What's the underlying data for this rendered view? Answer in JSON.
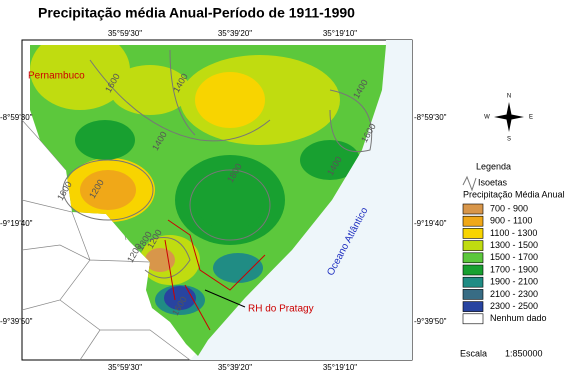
{
  "title": "Precipitação média Anual-Período de 1911-1990",
  "map": {
    "top_coords": [
      "35°59'30\"",
      "35°39'20\"",
      "35°19'10\""
    ],
    "bottom_coords": [
      "35°59'30\"",
      "35°39'20\"",
      "35°19'10\""
    ],
    "left_coords": [
      "-8°59'30\"",
      "-9°19'40\"",
      "-9°39'50\""
    ],
    "right_coords": [
      "-8°59'30\"",
      "-9°19'40\"",
      "-9°39'50\""
    ],
    "state": "Pernambuco",
    "ocean": "Oceano Atlântico",
    "basin": "RH do Pratagy",
    "isoline_labels": [
      "1600",
      "1400",
      "1200",
      "1400",
      "1600",
      "1800",
      "1400",
      "1600",
      "1200",
      "1800",
      "1200",
      "1600",
      "1400"
    ]
  },
  "compass": {
    "n": "N",
    "s": "S",
    "e": "E",
    "w": "W"
  },
  "legend": {
    "title": "Legenda",
    "isolines": "Isoetas",
    "precip_title": "Precipitação Média Anual",
    "items": [
      {
        "label": "700 - 900",
        "color": "#d8964a"
      },
      {
        "label": "900 - 1100",
        "color": "#f0a818"
      },
      {
        "label": "1100 - 1300",
        "color": "#f8d400"
      },
      {
        "label": "1300 - 1500",
        "color": "#c0dc10"
      },
      {
        "label": "1500 - 1700",
        "color": "#5cc83c"
      },
      {
        "label": "1700 - 1900",
        "color": "#18a030"
      },
      {
        "label": "1900 - 2100",
        "color": "#208c84"
      },
      {
        "label": "2100 - 2300",
        "color": "#386c84"
      },
      {
        "label": "2300 - 2500",
        "color": "#2844a0"
      },
      {
        "label": "Nenhum dado",
        "color": "#ffffff"
      }
    ]
  },
  "scale": {
    "label": "Escala",
    "value": "1:850000"
  }
}
